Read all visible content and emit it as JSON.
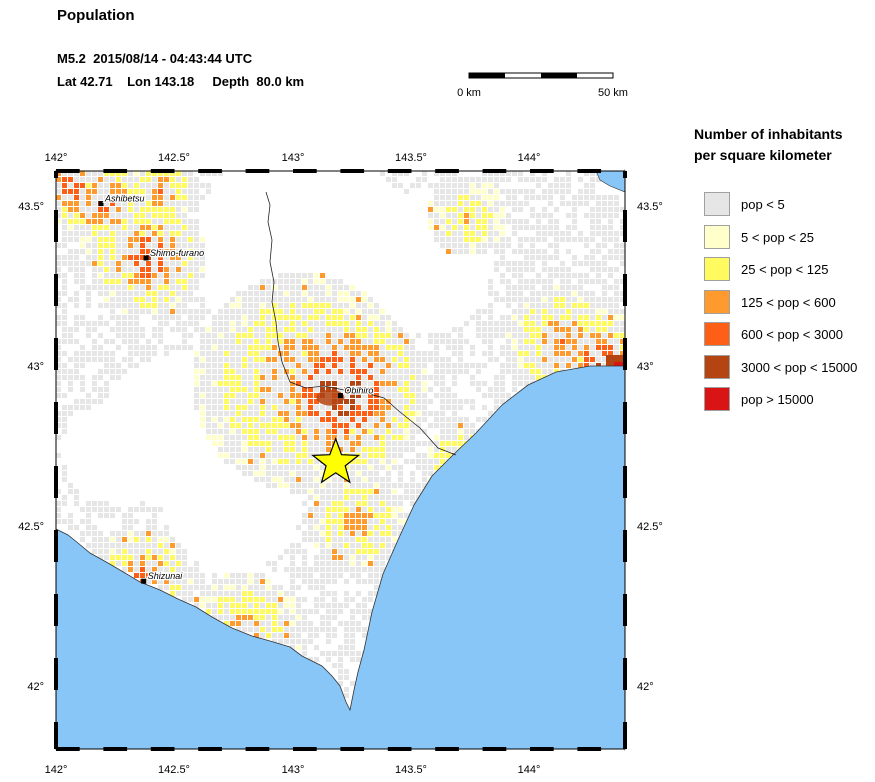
{
  "header": {
    "title": "Population",
    "event_line": "M5.2  2015/08/14 - 04:43:44 UTC",
    "location_line": "Lat 42.71    Lon 143.18     Depth  80.0 km"
  },
  "scale_bar": {
    "left_label": "0 km",
    "right_label": "50 km"
  },
  "map": {
    "lon_ticks": [
      "142°",
      "142.5°",
      "143°",
      "143.5°",
      "144°"
    ],
    "lat_ticks": [
      "43.5°",
      "43°",
      "42.5°",
      "42°"
    ],
    "cities": [
      {
        "name": "Ashibetsu",
        "lon": 142.19,
        "lat": 43.52
      },
      {
        "name": "Shimo-furano",
        "lon": 142.38,
        "lat": 43.35
      },
      {
        "name": "Obihiro",
        "lon": 143.2,
        "lat": 42.92
      },
      {
        "name": "Shizunai",
        "lon": 142.37,
        "lat": 42.34
      }
    ],
    "epicenter": {
      "lon": 143.18,
      "lat": 42.71
    },
    "colors": {
      "ocean": "#87c6f7",
      "land": "#ffffff",
      "epicenter": "#ffff00"
    }
  },
  "legend": {
    "title_line1": "Number of inhabitants",
    "title_line2": "per square kilometer",
    "items": [
      {
        "label": "pop < 5",
        "color": "#e6e6e6"
      },
      {
        "label": "5 < pop < 25",
        "color": "#ffffcc"
      },
      {
        "label": "25 < pop < 125",
        "color": "#fffa5f"
      },
      {
        "label": "125 < pop < 600",
        "color": "#fe9a2e"
      },
      {
        "label": "600 < pop < 3000",
        "color": "#fe5f16"
      },
      {
        "label": "3000 < pop < 15000",
        "color": "#b44412"
      },
      {
        "label": "pop > 15000",
        "color": "#d81414"
      }
    ]
  }
}
